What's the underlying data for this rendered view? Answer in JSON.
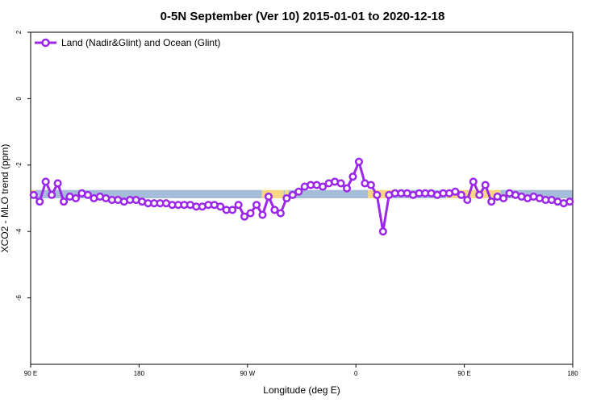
{
  "chart_data": {
    "type": "line",
    "title": "0-5N September (Ver 10)   2015-01-01 to 2020-12-18",
    "xlabel": "Longitude (deg E)",
    "ylabel": "XCO2 - MLO trend (ppm)",
    "x_ticks": [
      {
        "value": 90,
        "label": "90 E"
      },
      {
        "value": 180,
        "label": "180"
      },
      {
        "value": 270,
        "label": "90 W"
      },
      {
        "value": 360,
        "label": "0"
      },
      {
        "value": 450,
        "label": "90 E"
      },
      {
        "value": 540,
        "label": "180"
      }
    ],
    "y_ticks": [
      {
        "value": 2,
        "label": "2"
      },
      {
        "value": 0,
        "label": "0"
      },
      {
        "value": -2,
        "label": "-2"
      },
      {
        "value": -4,
        "label": "-4"
      },
      {
        "value": -6,
        "label": "-6"
      }
    ],
    "xlim": [
      90,
      540
    ],
    "ylim": [
      -8,
      2
    ],
    "grid": false,
    "legend": {
      "position": "top-left",
      "entries": [
        "Land (Nadir&Glint) and Ocean (Glint)"
      ]
    },
    "surface_band": {
      "y_range": [
        -2.75,
        -3.0
      ],
      "segments": [
        {
          "x_start": 90,
          "x_end": 94,
          "surface": "land",
          "color": "#f8d784"
        },
        {
          "x_start": 94,
          "x_end": 282,
          "surface": "ocean",
          "color": "#a6bdd9"
        },
        {
          "x_start": 282,
          "x_end": 300,
          "surface": "land",
          "color": "#f8d784"
        },
        {
          "x_start": 300,
          "x_end": 301,
          "surface": "ocean",
          "color": "#a6bdd9"
        },
        {
          "x_start": 301,
          "x_end": 304,
          "surface": "land",
          "color": "#f8d784"
        },
        {
          "x_start": 304,
          "x_end": 370,
          "surface": "ocean",
          "color": "#a6bdd9"
        },
        {
          "x_start": 370,
          "x_end": 390,
          "surface": "land",
          "color": "#f8d784"
        },
        {
          "x_start": 390,
          "x_end": 435,
          "surface": "ocean",
          "color": "#a6bdd9"
        },
        {
          "x_start": 435,
          "x_end": 480,
          "surface": "land",
          "color": "#f8d784"
        },
        {
          "x_start": 480,
          "x_end": 540,
          "surface": "ocean",
          "color": "#a6bdd9"
        }
      ]
    },
    "series": [
      {
        "name": "Land (Nadir&Glint) and Ocean (Glint)",
        "color": "#9b27e8",
        "x": [
          92.5,
          97.5,
          102.5,
          107.5,
          112.5,
          117.5,
          122.5,
          127.5,
          132.5,
          137.5,
          142.5,
          147.5,
          152.5,
          157.5,
          162.5,
          167.5,
          172.5,
          177.5,
          182.5,
          187.5,
          192.5,
          197.5,
          202.5,
          207.5,
          212.5,
          217.5,
          222.5,
          227.5,
          232.5,
          237.5,
          242.5,
          247.5,
          252.5,
          257.5,
          262.5,
          267.5,
          272.5,
          277.5,
          282.5,
          287.5,
          292.5,
          297.5,
          302.5,
          307.5,
          312.5,
          317.5,
          322.5,
          327.5,
          332.5,
          337.5,
          342.5,
          347.5,
          352.5,
          357.5,
          362.5,
          367.5,
          372.5,
          377.5,
          382.5,
          387.5,
          392.5,
          397.5,
          402.5,
          407.5,
          412.5,
          417.5,
          422.5,
          427.5,
          432.5,
          437.5,
          442.5,
          447.5,
          452.5,
          457.5,
          462.5,
          467.5,
          472.5,
          477.5,
          482.5,
          487.5,
          492.5,
          497.5,
          502.5,
          507.5,
          512.5,
          517.5,
          522.5,
          527.5,
          532.5,
          537.5
        ],
        "values": [
          -2.9,
          -3.1,
          -2.5,
          -2.9,
          -2.55,
          -3.1,
          -2.95,
          -3.0,
          -2.85,
          -2.9,
          -3.0,
          -2.95,
          -3.0,
          -3.05,
          -3.05,
          -3.1,
          -3.05,
          -3.05,
          -3.1,
          -3.15,
          -3.15,
          -3.15,
          -3.15,
          -3.2,
          -3.2,
          -3.2,
          -3.2,
          -3.25,
          -3.25,
          -3.2,
          -3.2,
          -3.25,
          -3.35,
          -3.35,
          -3.2,
          -3.55,
          -3.45,
          -3.2,
          -3.5,
          -2.95,
          -3.35,
          -3.45,
          -3.0,
          -2.9,
          -2.8,
          -2.65,
          -2.6,
          -2.6,
          -2.65,
          -2.55,
          -2.5,
          -2.55,
          -2.7,
          -2.35,
          -1.9,
          -2.55,
          -2.6,
          -2.9,
          -4.0,
          -2.9,
          -2.85,
          -2.85,
          -2.85,
          -2.9,
          -2.85,
          -2.85,
          -2.85,
          -2.9,
          -2.85,
          -2.85,
          -2.8,
          -2.9,
          -3.05,
          -2.5,
          -2.9,
          -2.6,
          -3.1,
          -2.95,
          -3.0,
          -2.85,
          -2.9,
          -2.95,
          -3.0,
          -2.95,
          -3.0,
          -3.05,
          -3.05,
          -3.1,
          -3.15,
          -3.1
        ]
      }
    ]
  }
}
